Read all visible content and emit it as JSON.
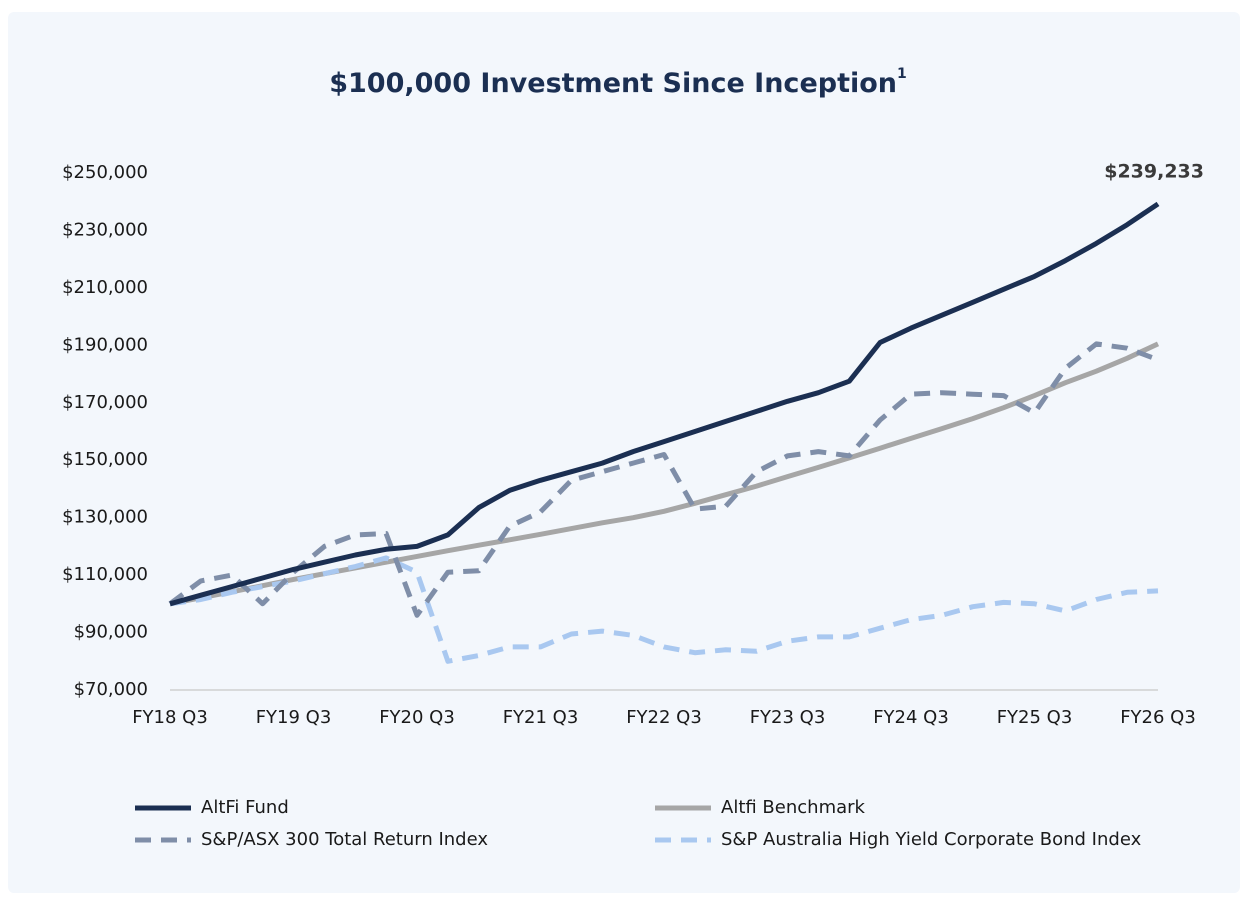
{
  "chart_data": {
    "type": "line",
    "title": "$100,000 Investment Since Inception",
    "title_note": "1",
    "categories": [
      "FY18 Q3",
      null,
      null,
      null,
      "FY19 Q3",
      null,
      null,
      null,
      "FY20 Q3",
      null,
      null,
      null,
      "FY21 Q3",
      null,
      null,
      null,
      "FY22 Q3",
      null,
      null,
      null,
      "FY23 Q3",
      null,
      null,
      null,
      "FY24 Q3",
      null,
      null,
      null,
      "FY25 Q3",
      null,
      null,
      null,
      "FY26 Q3"
    ],
    "series": [
      {
        "name": "AltFi Fund",
        "color": "#1b2f52",
        "dash": false,
        "values": [
          100000,
          103000,
          106000,
          109000,
          112000,
          114500,
          117000,
          119000,
          120000,
          124000,
          133500,
          139500,
          143000,
          146000,
          149000,
          153000,
          156500,
          160000,
          163500,
          167000,
          170500,
          173500,
          177500,
          191000,
          196000,
          200500,
          205000,
          209500,
          214000,
          219500,
          225500,
          232000,
          239233
        ]
      },
      {
        "name": "Altfi Benchmark",
        "color": "#a6a6a6",
        "dash": false,
        "values": [
          100000,
          102100,
          104200,
          106300,
          108500,
          110500,
          112500,
          114500,
          116500,
          118500,
          120400,
          122300,
          124200,
          126200,
          128200,
          130000,
          132200,
          135000,
          138000,
          141000,
          144300,
          147500,
          150800,
          154200,
          157600,
          161000,
          164500,
          168300,
          172500,
          177000,
          181000,
          185500,
          190500
        ]
      },
      {
        "name": "S&P/ASX 300 Total Return Index",
        "color": "#7f8ea8",
        "dash": true,
        "values": [
          100000,
          108000,
          110000,
          100000,
          111000,
          120000,
          124000,
          124500,
          96000,
          111000,
          111500,
          127000,
          132000,
          143000,
          146000,
          149000,
          152000,
          133000,
          134000,
          146000,
          151500,
          153000,
          151500,
          164000,
          173000,
          173500,
          173000,
          172500,
          166500,
          182000,
          190500,
          189000,
          185000
        ]
      },
      {
        "name": "S&P Australia High Yield Corporate Bond Index",
        "color": "#a9c8f0",
        "dash": true,
        "values": [
          100000,
          101500,
          104000,
          106000,
          108000,
          110500,
          113000,
          116000,
          111000,
          80000,
          82000,
          85000,
          85000,
          89500,
          90500,
          89000,
          85000,
          83000,
          84000,
          83500,
          87000,
          88500,
          88500,
          91500,
          94500,
          96000,
          99000,
          100500,
          100000,
          97500,
          101500,
          104000,
          104500
        ]
      }
    ],
    "ylim": [
      70000,
      250000
    ],
    "yticks": [
      {
        "value": 70000,
        "label": "$70,000"
      },
      {
        "value": 90000,
        "label": "$90,000"
      },
      {
        "value": 110000,
        "label": "$110,000"
      },
      {
        "value": 130000,
        "label": "$130,000"
      },
      {
        "value": 150000,
        "label": "$150,000"
      },
      {
        "value": 170000,
        "label": "$170,000"
      },
      {
        "value": 190000,
        "label": "$190,000"
      },
      {
        "value": 210000,
        "label": "$210,000"
      },
      {
        "value": 230000,
        "label": "$230,000"
      },
      {
        "value": 250000,
        "label": "$250,000"
      }
    ],
    "annotation": "$239,233",
    "grid": false,
    "legend": "bottom"
  }
}
